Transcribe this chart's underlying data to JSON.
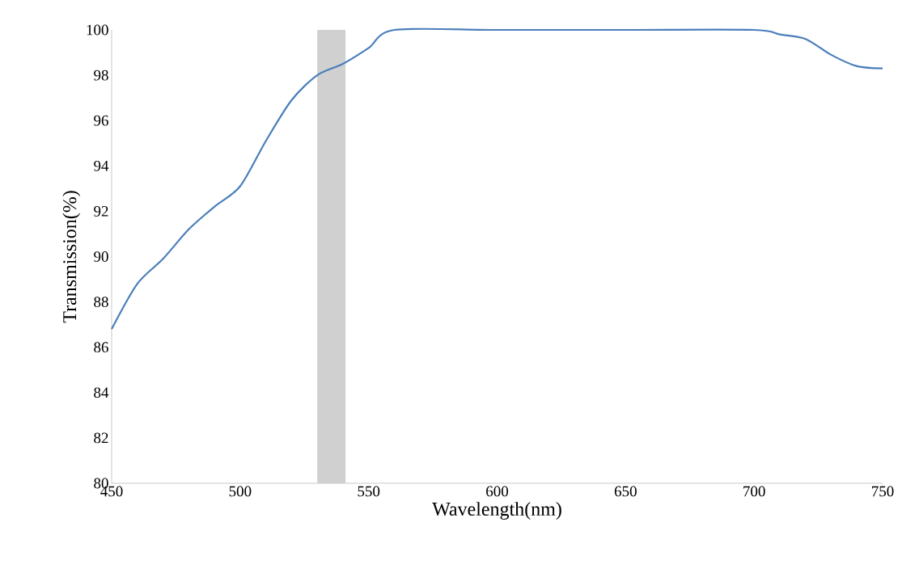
{
  "chart_data": {
    "type": "line",
    "xlabel": "Wavelength(nm)",
    "ylabel": "Transmission(%)",
    "x": [
      450,
      460,
      470,
      480,
      490,
      500,
      510,
      520,
      530,
      540,
      550,
      560,
      600,
      650,
      700,
      710,
      720,
      730,
      740,
      750
    ],
    "series": [
      {
        "color": "#4a7ebb",
        "values": [
          86.8,
          88.8,
          89.9,
          91.2,
          92.2,
          93.1,
          95.1,
          96.9,
          98.0,
          98.5,
          99.2,
          100,
          100,
          100,
          100,
          99.8,
          99.6,
          98.9,
          98.4,
          98.3
        ]
      }
    ],
    "xlim": [
      450,
      750
    ],
    "ylim": [
      80,
      100
    ],
    "xticks": [
      450,
      500,
      550,
      600,
      650,
      700,
      750
    ],
    "yticks": [
      80,
      82,
      84,
      86,
      88,
      90,
      92,
      94,
      96,
      98,
      100
    ],
    "bands": [
      {
        "axis": "x",
        "from": 530,
        "to": 541,
        "color": "#d0d0d0"
      }
    ]
  }
}
